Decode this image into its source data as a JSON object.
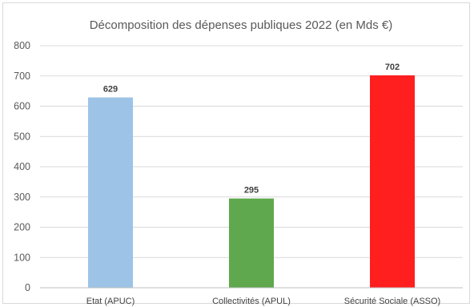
{
  "chart_data": {
    "type": "bar",
    "title": "Décomposition des dépenses publiques 2022 (en Mds €)",
    "xlabel": "",
    "ylabel": "",
    "categories": [
      "Etat (APUC)",
      "Collectivités (APUL)",
      "Sécurité Sociale (ASSO)"
    ],
    "values": [
      629,
      295,
      702
    ],
    "bar_colors": [
      "#9dc3e6",
      "#5fa84d",
      "#ff1f1f"
    ],
    "ylim": [
      0,
      800
    ],
    "yticks": [
      0,
      100,
      200,
      300,
      400,
      500,
      600,
      700,
      800
    ],
    "grid": true,
    "legend": "none"
  }
}
